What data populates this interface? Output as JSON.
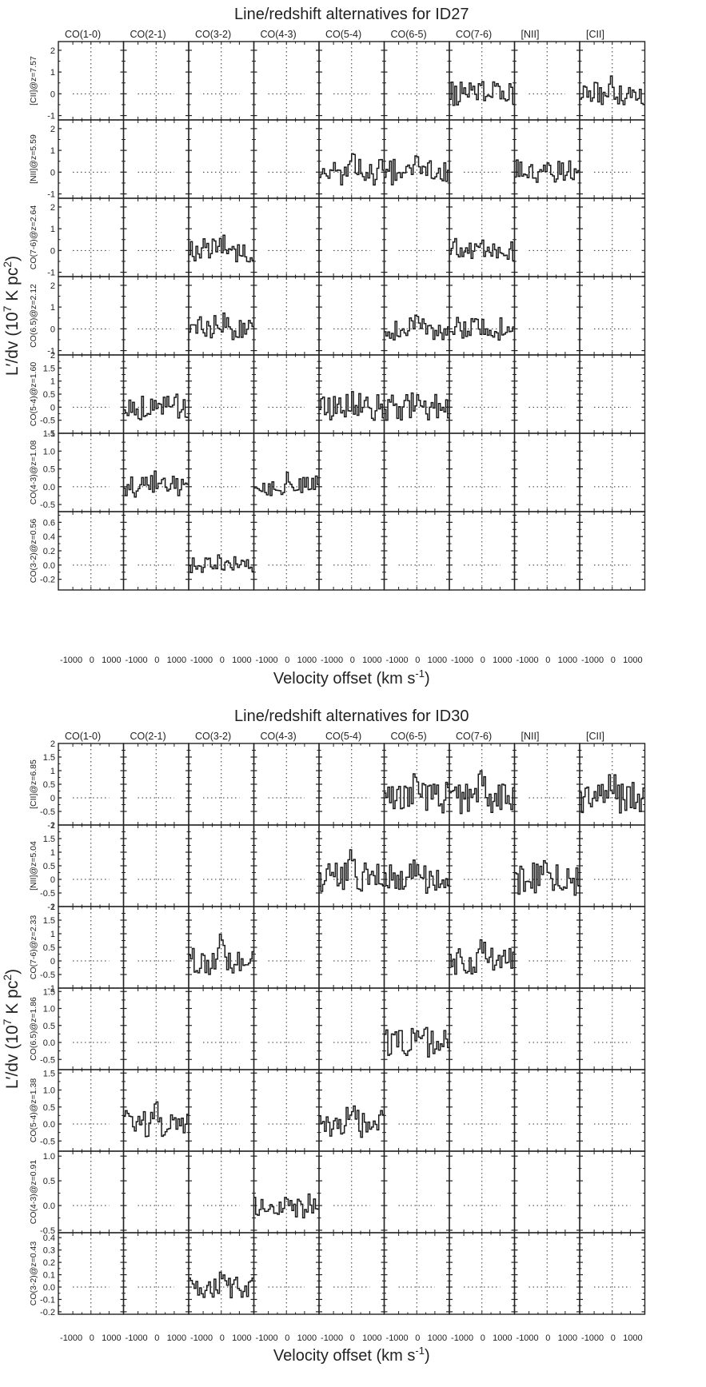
{
  "chart_data": [
    {
      "type": "grid-spectra",
      "title": "Line/redshift alternatives for ID27",
      "xlabel": "Velocity offset (km s",
      "xlabel_sup": "-1",
      "xlabel_end": ")",
      "ylabel_main": "L′/dv (10",
      "ylabel_sup1": "7",
      "ylabel_mid": " K pc",
      "ylabel_sup2": "2",
      "ylabel_end": ")",
      "columns": [
        "CO(1-0)",
        "CO(2-1)",
        "CO(3-2)",
        "CO(4-3)",
        "CO(5-4)",
        "CO(6-5)",
        "CO(7-6)",
        "[NII]",
        "[CII]"
      ],
      "x_tick_labels": [
        "-1000",
        "0",
        "1000"
      ],
      "xlim": [
        -1800,
        1800
      ],
      "rows": [
        {
          "label": "[CII]@z=7.57",
          "ylim": [
            -1.2,
            2.4
          ],
          "yticks": [
            -1,
            0,
            1,
            2
          ],
          "spectra_cols": [
            6,
            8
          ],
          "amp": 0.55
        },
        {
          "label": "[NII]@z=5.59",
          "ylim": [
            -1.2,
            2.4
          ],
          "yticks": [
            -1,
            0,
            1,
            2
          ],
          "spectra_cols": [
            4,
            5,
            7
          ],
          "amp": 0.6
        },
        {
          "label": "CO(7-6)@z=2.64",
          "ylim": [
            -1.2,
            2.4
          ],
          "yticks": [
            -1,
            0,
            1,
            2
          ],
          "spectra_cols": [
            2,
            6
          ],
          "amp": 0.55
        },
        {
          "label": "CO(6.5)@z=2.12",
          "ylim": [
            -1.2,
            2.4
          ],
          "yticks": [
            -1,
            0,
            1,
            2
          ],
          "spectra_cols": [
            2,
            5,
            6
          ],
          "amp": 0.55
        },
        {
          "label": "CO(5-4)@z=1.60",
          "ylim": [
            -1.0,
            2.0
          ],
          "yticks": [
            -1.0,
            -0.5,
            0.0,
            0.5,
            1.0,
            1.5,
            2.0
          ],
          "spectra_cols": [
            1,
            4,
            5
          ],
          "amp": 0.5
        },
        {
          "label": "CO(4-3)@z=1.08",
          "ylim": [
            -0.7,
            1.5
          ],
          "yticks": [
            -0.5,
            0.0,
            0.5,
            1.0,
            1.5
          ],
          "spectra_cols": [
            1,
            3
          ],
          "amp": 0.3
        },
        {
          "label": "CO(3-2)@z=0.56",
          "ylim": [
            -0.35,
            0.75
          ],
          "yticks": [
            -0.2,
            0.0,
            0.2,
            0.4,
            0.6
          ],
          "spectra_cols": [
            2
          ],
          "amp": 0.12
        }
      ]
    },
    {
      "type": "grid-spectra",
      "title": "Line/redshift alternatives for ID30",
      "xlabel": "Velocity offset (km s",
      "xlabel_sup": "-1",
      "xlabel_end": ")",
      "ylabel_main": "L′/dv (10",
      "ylabel_sup1": "7",
      "ylabel_mid": " K pc",
      "ylabel_sup2": "2",
      "ylabel_end": ")",
      "columns": [
        "CO(1-0)",
        "CO(2-1)",
        "CO(3-2)",
        "CO(4-3)",
        "CO(5-4)",
        "CO(6-5)",
        "CO(7-6)",
        "[NII]",
        "[CII]"
      ],
      "x_tick_labels": [
        "-1000",
        "0",
        "1000"
      ],
      "xlim": [
        -1800,
        1800
      ],
      "rows": [
        {
          "label": "[CII]@z=6.85",
          "ylim": [
            -1.0,
            2.0
          ],
          "yticks": [
            -1.0,
            -0.5,
            0.0,
            0.5,
            1.0,
            1.5,
            2.0
          ],
          "spectra_cols": [
            5,
            6,
            8
          ],
          "amp": 0.6
        },
        {
          "label": "[NII]@z=5.04",
          "ylim": [
            -1.0,
            2.0
          ],
          "yticks": [
            -1.0,
            -0.5,
            0.0,
            0.5,
            1.0,
            1.5,
            2.0
          ],
          "spectra_cols": [
            4,
            5,
            7
          ],
          "amp": 0.6
        },
        {
          "label": "CO(7-6)@z=2.33",
          "ylim": [
            -1.0,
            2.0
          ],
          "yticks": [
            -1.0,
            -0.5,
            0.0,
            0.5,
            1.0,
            1.5,
            2.0
          ],
          "spectra_cols": [
            2,
            6
          ],
          "amp": 0.5
        },
        {
          "label": "CO(6.5)@z=1.86",
          "ylim": [
            -0.8,
            1.6
          ],
          "yticks": [
            -0.5,
            0.0,
            0.5,
            1.0,
            1.5
          ],
          "spectra_cols": [
            5
          ],
          "amp": 0.45
        },
        {
          "label": "CO(5-4)@z=1.38",
          "ylim": [
            -0.8,
            1.6
          ],
          "yticks": [
            -0.5,
            0.0,
            0.5,
            1.0,
            1.5
          ],
          "spectra_cols": [
            1,
            4
          ],
          "amp": 0.4
        },
        {
          "label": "CO(4-3)@z=0.91",
          "ylim": [
            -0.55,
            1.1
          ],
          "yticks": [
            -0.5,
            0.0,
            0.5,
            1.0
          ],
          "spectra_cols": [
            3
          ],
          "amp": 0.25
        },
        {
          "label": "CO(3-2)@z=0.43",
          "ylim": [
            -0.22,
            0.44
          ],
          "yticks": [
            -0.2,
            -0.1,
            0.0,
            0.1,
            0.2,
            0.3,
            0.4
          ],
          "spectra_cols": [
            2
          ],
          "amp": 0.1
        }
      ]
    }
  ]
}
